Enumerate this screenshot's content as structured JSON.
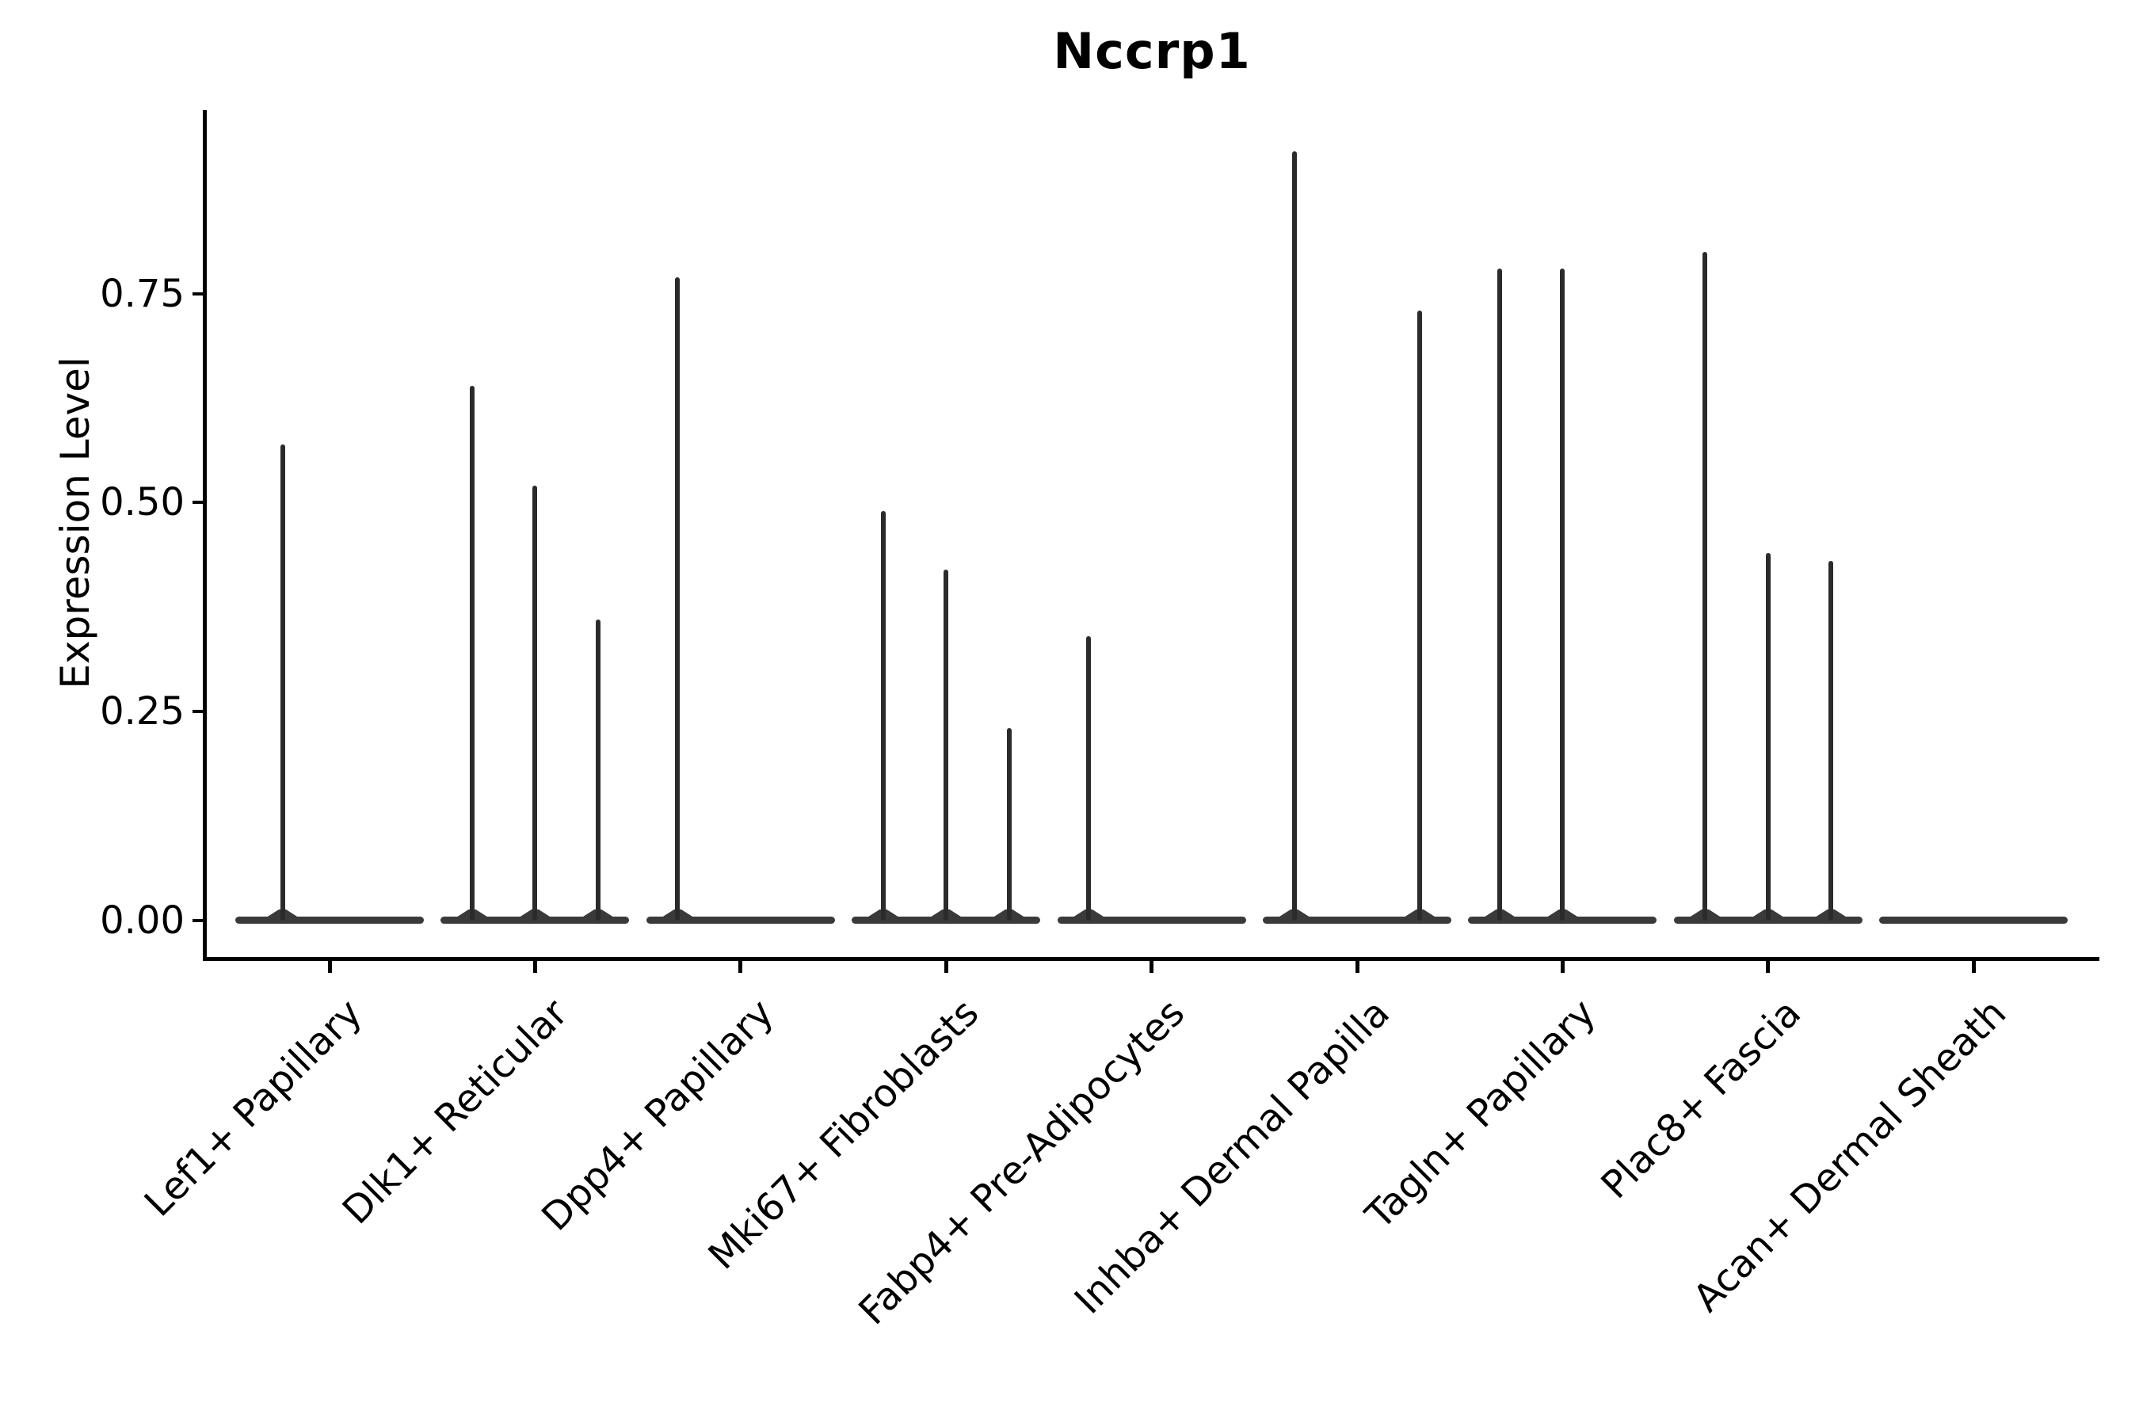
{
  "title": "Nccrp1",
  "ylabel": "Expression Level",
  "colors": {
    "background": "#ffffff",
    "axis": "#000000",
    "violin_outline": "#2b2b2b",
    "violin_baseline": "#3a3a3a",
    "text": "#000000"
  },
  "chart_data": {
    "type": "violin",
    "title": "Nccrp1",
    "xlabel": "",
    "ylabel": "Expression Level",
    "ylim": [
      -0.046,
      0.97
    ],
    "grid": false,
    "legend_position": "none",
    "x_tick_rotation_deg": 45,
    "yticks": [
      {
        "label": "0.00",
        "value": 0.0
      },
      {
        "label": "0.25",
        "value": 0.25
      },
      {
        "label": "0.50",
        "value": 0.5
      },
      {
        "label": "0.75",
        "value": 0.75
      }
    ],
    "categories": [
      "Lef1+ Papillary",
      "Dlk1+ Reticular",
      "Dpp4+ Papillary",
      "Mki67+ Fibroblasts",
      "Fabp4+ Pre-Adipocytes",
      "Inhba+ Dermal Papilla",
      "Tagln+ Papillary",
      "Plac8+ Fascia",
      "Acan+ Dermal Sheath"
    ],
    "groups": [
      {
        "label": "Lef1+ Papillary",
        "violin_peaks": [
          0.57,
          0
        ]
      },
      {
        "label": "Dlk1+ Reticular",
        "violin_peaks": [
          0.64,
          0.52,
          0.36
        ]
      },
      {
        "label": "Dpp4+ Papillary",
        "violin_peaks": [
          0.77,
          0,
          0
        ]
      },
      {
        "label": "Mki67+ Fibroblasts",
        "violin_peaks": [
          0.49,
          0.42,
          0.23
        ]
      },
      {
        "label": "Fabp4+ Pre-Adipocytes",
        "violin_peaks": [
          0.34,
          0,
          0
        ]
      },
      {
        "label": "Inhba+ Dermal Papilla",
        "violin_peaks": [
          0.92,
          0,
          0.73
        ]
      },
      {
        "label": "Tagln+ Papillary",
        "violin_peaks": [
          0.78,
          0.78,
          0
        ]
      },
      {
        "label": "Plac8+ Fascia",
        "violin_peaks": [
          0.8,
          0.44,
          0.43
        ]
      },
      {
        "label": "Acan+ Dermal Sheath",
        "violin_peaks": [
          0,
          0,
          0
        ]
      }
    ]
  }
}
